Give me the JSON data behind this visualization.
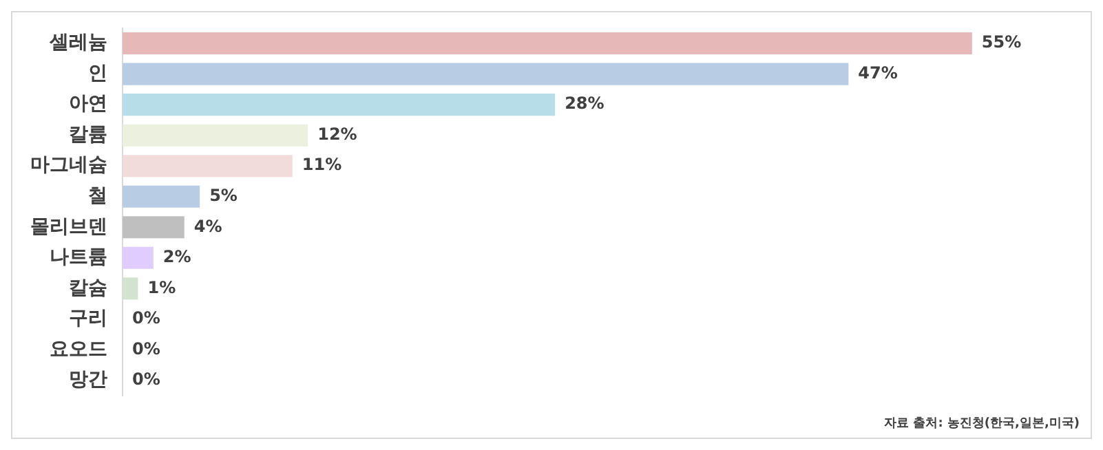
{
  "chart_data": {
    "type": "bar",
    "orientation": "horizontal",
    "categories": [
      "셀레늄",
      "인",
      "아연",
      "칼륨",
      "마그네슘",
      "철",
      "몰리브덴",
      "나트륨",
      "칼슘",
      "구리",
      "요오드",
      "망간"
    ],
    "values": [
      55,
      47,
      28,
      12,
      11,
      5,
      4,
      2,
      1,
      0,
      0,
      0
    ],
    "value_labels": [
      "55%",
      "47%",
      "28%",
      "12%",
      "11%",
      "5%",
      "4%",
      "2%",
      "1%",
      "0%",
      "0%",
      "0%"
    ],
    "colors": [
      "#e6b8b7",
      "#b8cce4",
      "#b7dde8",
      "#ebf1de",
      "#f2dcdb",
      "#b8cce4",
      "#bfbfbf",
      "#e0ccff",
      "#d3e3cf",
      "#4f81bd",
      "#4f81bd",
      "#4f81bd"
    ],
    "legend": false,
    "annotations": [
      "자료 출처: 농진청(한국,일본,미국)"
    ]
  }
}
